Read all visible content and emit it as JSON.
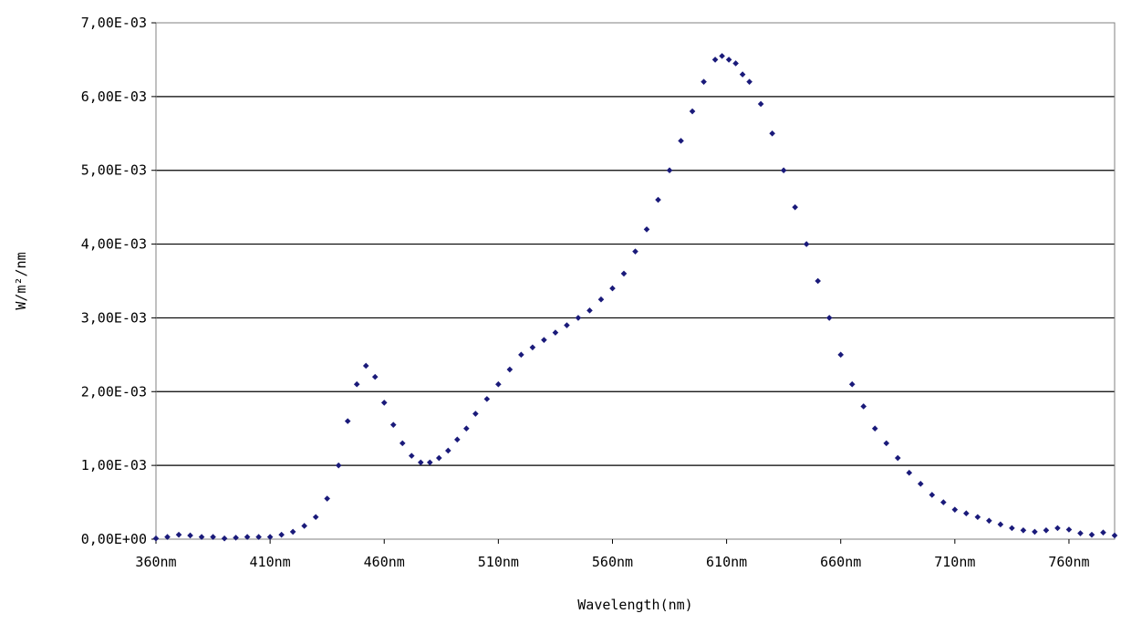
{
  "chart_data": {
    "type": "scatter",
    "title": "",
    "xlabel": "Wavelength(nm)",
    "ylabel": "W/m²/nm",
    "xlim": [
      360,
      780
    ],
    "ylim": [
      0,
      0.007
    ],
    "grid": "horizontal",
    "legend": "none",
    "x_ticks": [
      {
        "value": 360,
        "label": "360nm"
      },
      {
        "value": 410,
        "label": "410nm"
      },
      {
        "value": 460,
        "label": "460nm"
      },
      {
        "value": 510,
        "label": "510nm"
      },
      {
        "value": 560,
        "label": "560nm"
      },
      {
        "value": 610,
        "label": "610nm"
      },
      {
        "value": 660,
        "label": "660nm"
      },
      {
        "value": 710,
        "label": "710nm"
      },
      {
        "value": 760,
        "label": "760nm"
      }
    ],
    "y_ticks": [
      {
        "value": 0,
        "label": "0,00E+00"
      },
      {
        "value": 0.001,
        "label": "1,00E-03"
      },
      {
        "value": 0.002,
        "label": "2,00E-03"
      },
      {
        "value": 0.003,
        "label": "3,00E-03"
      },
      {
        "value": 0.004,
        "label": "4,00E-03"
      },
      {
        "value": 0.005,
        "label": "5,00E-03"
      },
      {
        "value": 0.006,
        "label": "6,00E-03"
      },
      {
        "value": 0.007,
        "label": "7,00E-03"
      }
    ],
    "marker_color": "#1a1a7a",
    "series": [
      {
        "x": [
          360,
          365,
          370,
          375,
          380,
          385,
          390,
          395,
          400,
          405,
          410,
          415,
          420,
          425,
          430,
          435,
          440,
          444,
          448,
          452,
          456,
          460,
          464,
          468,
          472,
          476,
          480,
          484,
          488,
          492,
          496,
          500,
          505,
          510,
          515,
          520,
          525,
          530,
          535,
          540,
          545,
          550,
          555,
          560,
          565,
          570,
          575,
          580,
          585,
          590,
          595,
          600,
          605,
          608,
          611,
          614,
          617,
          620,
          625,
          630,
          635,
          640,
          645,
          650,
          655,
          660,
          665,
          670,
          675,
          680,
          685,
          690,
          695,
          700,
          705,
          710,
          715,
          720,
          725,
          730,
          735,
          740,
          745,
          750,
          755,
          760,
          765,
          770,
          775,
          780
        ],
        "y": [
          1e-05,
          3e-05,
          6e-05,
          5e-05,
          3e-05,
          3e-05,
          1e-05,
          2e-05,
          3e-05,
          3e-05,
          3e-05,
          6e-05,
          0.0001,
          0.00018,
          0.0003,
          0.00055,
          0.001,
          0.0016,
          0.0021,
          0.00235,
          0.0022,
          0.00185,
          0.00155,
          0.0013,
          0.00113,
          0.00104,
          0.00104,
          0.0011,
          0.0012,
          0.00135,
          0.0015,
          0.0017,
          0.0019,
          0.0021,
          0.0023,
          0.0025,
          0.0026,
          0.0027,
          0.0028,
          0.0029,
          0.003,
          0.0031,
          0.00325,
          0.0034,
          0.0036,
          0.0039,
          0.0042,
          0.0046,
          0.005,
          0.0054,
          0.0058,
          0.0062,
          0.0065,
          0.00655,
          0.0065,
          0.00645,
          0.0063,
          0.0062,
          0.0059,
          0.0055,
          0.005,
          0.0045,
          0.004,
          0.0035,
          0.003,
          0.0025,
          0.0021,
          0.0018,
          0.0015,
          0.0013,
          0.0011,
          0.0009,
          0.00075,
          0.0006,
          0.0005,
          0.0004,
          0.00035,
          0.0003,
          0.00025,
          0.0002,
          0.00015,
          0.00012,
          0.0001,
          0.00012,
          0.00015,
          0.00013,
          8e-05,
          6e-05,
          9e-05,
          5e-05
        ]
      }
    ]
  }
}
